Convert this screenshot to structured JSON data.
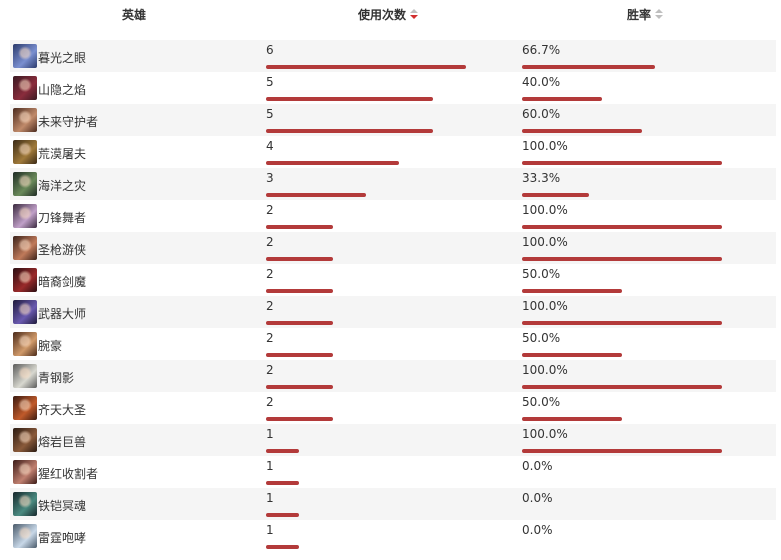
{
  "header": {
    "hero_label": "英雄",
    "uses_label": "使用次数",
    "winrate_label": "胜率",
    "uses_sort_icon": "sort-desc-active-icon",
    "winrate_sort_icon": "sort-neutral-icon"
  },
  "colors": {
    "bar": "#b33a3a",
    "sort_active": "#d22f2f",
    "row_alt": "#f5f5f5"
  },
  "max_uses": 6,
  "rows": [
    {
      "hero": "暮光之眼",
      "uses": "6",
      "uses_num": 6,
      "winrate": "66.7%",
      "winrate_num": 66.7,
      "avatar": [
        "#2b3a6b",
        "#7a8fd0"
      ]
    },
    {
      "hero": "山隐之焰",
      "uses": "5",
      "uses_num": 5,
      "winrate": "40.0%",
      "winrate_num": 40.0,
      "avatar": [
        "#3a1a22",
        "#8a2c3c"
      ]
    },
    {
      "hero": "未来守护者",
      "uses": "5",
      "uses_num": 5,
      "winrate": "60.0%",
      "winrate_num": 60.0,
      "avatar": [
        "#4a2a1e",
        "#c08a6a"
      ]
    },
    {
      "hero": "荒漠屠夫",
      "uses": "4",
      "uses_num": 4,
      "winrate": "100.0%",
      "winrate_num": 100.0,
      "avatar": [
        "#3a2a16",
        "#a07a3a"
      ]
    },
    {
      "hero": "海洋之灾",
      "uses": "3",
      "uses_num": 3,
      "winrate": "33.3%",
      "winrate_num": 33.3,
      "avatar": [
        "#1e2a24",
        "#6a8a5a"
      ]
    },
    {
      "hero": "刀锋舞者",
      "uses": "2",
      "uses_num": 2,
      "winrate": "100.0%",
      "winrate_num": 100.0,
      "avatar": [
        "#3a2a3e",
        "#c0a0c8"
      ]
    },
    {
      "hero": "圣枪游侠",
      "uses": "2",
      "uses_num": 2,
      "winrate": "100.0%",
      "winrate_num": 100.0,
      "avatar": [
        "#3a221a",
        "#c07a5a"
      ]
    },
    {
      "hero": "暗裔剑魔",
      "uses": "2",
      "uses_num": 2,
      "winrate": "50.0%",
      "winrate_num": 50.0,
      "avatar": [
        "#2a0e12",
        "#9a2a2a"
      ]
    },
    {
      "hero": "武器大师",
      "uses": "2",
      "uses_num": 2,
      "winrate": "100.0%",
      "winrate_num": 100.0,
      "avatar": [
        "#1e1a3a",
        "#6a5ab0"
      ]
    },
    {
      "hero": "腕豪",
      "uses": "2",
      "uses_num": 2,
      "winrate": "50.0%",
      "winrate_num": 50.0,
      "avatar": [
        "#4a2a1a",
        "#d09a6a"
      ]
    },
    {
      "hero": "青钢影",
      "uses": "2",
      "uses_num": 2,
      "winrate": "100.0%",
      "winrate_num": 100.0,
      "avatar": [
        "#5a5a5a",
        "#d8d8d0"
      ]
    },
    {
      "hero": "齐天大圣",
      "uses": "2",
      "uses_num": 2,
      "winrate": "50.0%",
      "winrate_num": 50.0,
      "avatar": [
        "#3a1a10",
        "#c05a2a"
      ]
    },
    {
      "hero": "熔岩巨兽",
      "uses": "1",
      "uses_num": 1,
      "winrate": "100.0%",
      "winrate_num": 100.0,
      "avatar": [
        "#2a1a12",
        "#8a5a3a"
      ]
    },
    {
      "hero": "猩红收割者",
      "uses": "1",
      "uses_num": 1,
      "winrate": "0.0%",
      "winrate_num": 0.0,
      "avatar": [
        "#3a1a16",
        "#c08070"
      ]
    },
    {
      "hero": "铁铠冥魂",
      "uses": "1",
      "uses_num": 1,
      "winrate": "0.0%",
      "winrate_num": 0.0,
      "avatar": [
        "#16262a",
        "#4a8a80"
      ]
    },
    {
      "hero": "雷霆咆哮",
      "uses": "1",
      "uses_num": 1,
      "winrate": "0.0%",
      "winrate_num": 0.0,
      "avatar": [
        "#4a5a6a",
        "#c8d8e8"
      ]
    }
  ]
}
